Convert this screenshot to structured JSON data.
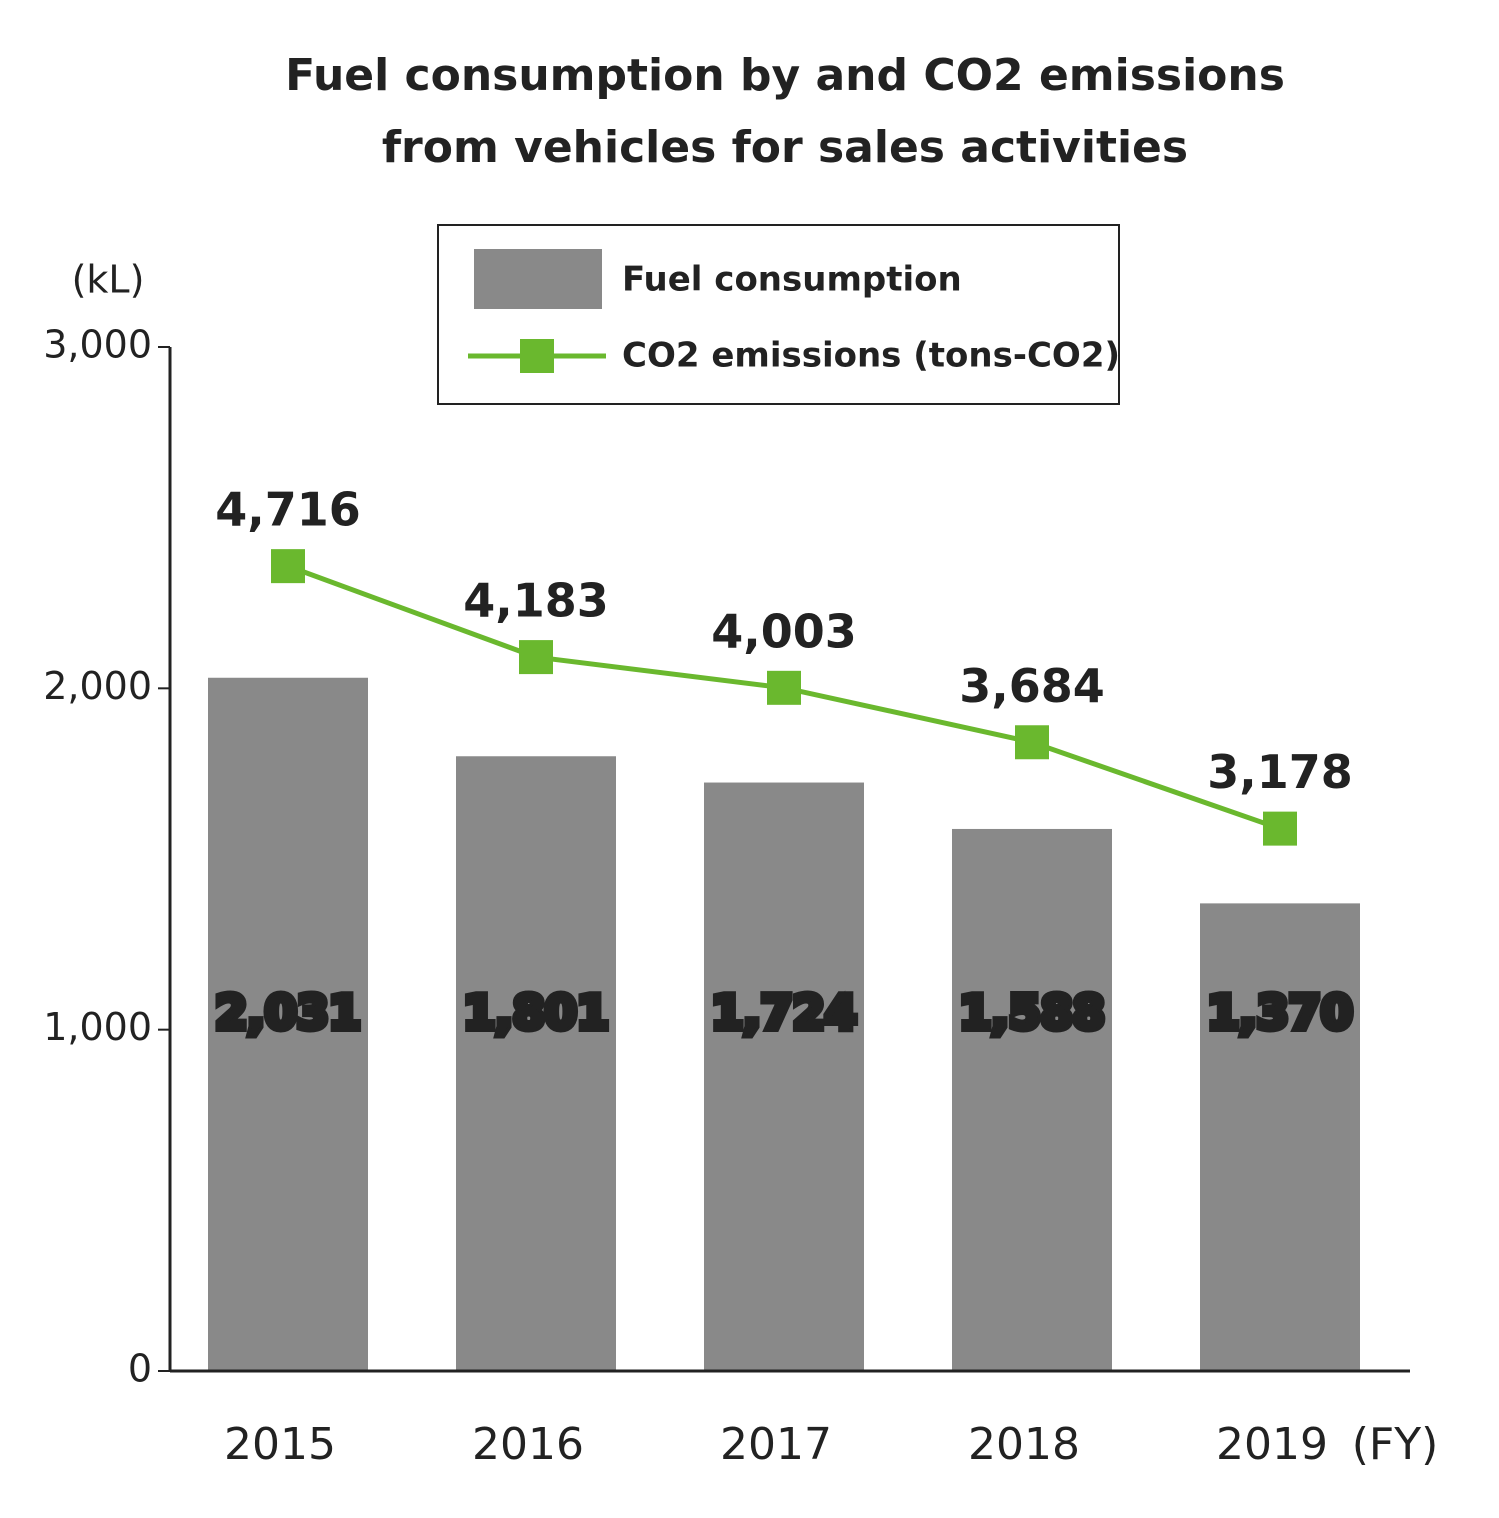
{
  "chart_data": {
    "type": "bar_line",
    "title": "Fuel consumption by and CO2 emissions from vehicles for sales activities",
    "y_axis_label": "(kL)",
    "x_axis_label": "(FY)",
    "categories": [
      "2015",
      "2016",
      "2017",
      "2018",
      "2019"
    ],
    "series": [
      {
        "name": "Fuel consumption",
        "type": "bar",
        "color": "#898989",
        "values": [
          2031,
          1801,
          1724,
          1588,
          1370
        ],
        "value_labels": [
          "2,031",
          "1,801",
          "1,724",
          "1,588",
          "1,370"
        ]
      },
      {
        "name": "CO2 emissions (tons-CO2)",
        "type": "line",
        "axis": "y2",
        "color": "#6ab82e",
        "values": [
          4716,
          4183,
          4003,
          3684,
          3178
        ],
        "value_labels": [
          "4,716",
          "4,183",
          "4,003",
          "3,684",
          "3,178"
        ]
      }
    ],
    "ylim": [
      0,
      3000
    ],
    "yticks": [
      0,
      {
        "value": 1000,
        "label": "1,000"
      },
      {
        "value": 2000,
        "label": "2,000"
      },
      {
        "value": 3000,
        "label": "3,000"
      }
    ],
    "y2lim": [
      0,
      6000
    ],
    "legend": "top"
  }
}
